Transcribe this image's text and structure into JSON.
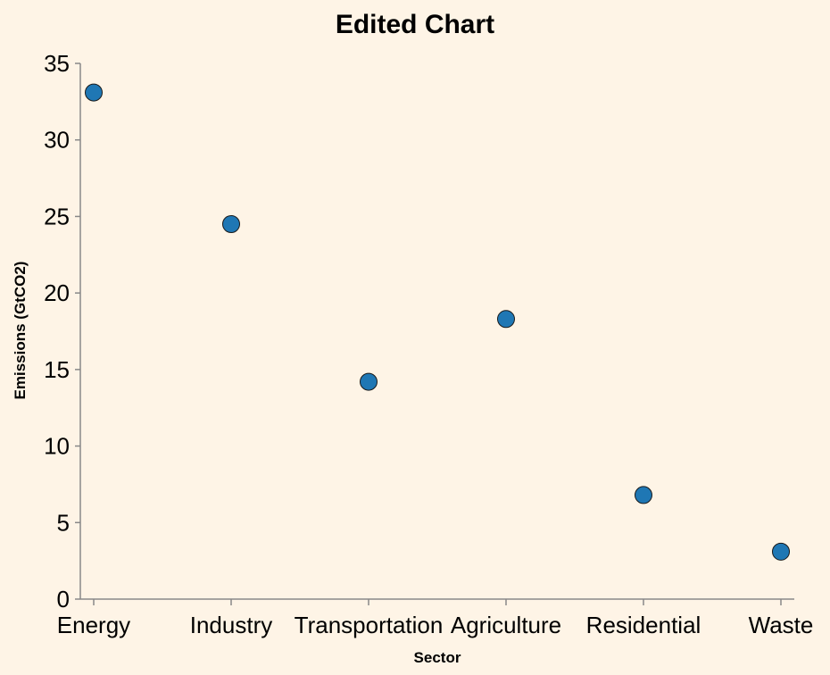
{
  "chart_data": {
    "type": "scatter",
    "title": "Edited Chart",
    "xlabel": "Sector",
    "ylabel": "Emissions (GtCO2)",
    "categories": [
      "Energy",
      "Industry",
      "Transportation",
      "Agriculture",
      "Residential",
      "Waste"
    ],
    "values": [
      33.1,
      24.5,
      14.2,
      18.3,
      6.8,
      3.1
    ],
    "ylim": [
      0,
      35
    ],
    "yticks": [
      0,
      5,
      10,
      15,
      20,
      25,
      30,
      35
    ],
    "grid": false,
    "point_color": "#1f77b4",
    "background_color": "#fef4e6"
  }
}
